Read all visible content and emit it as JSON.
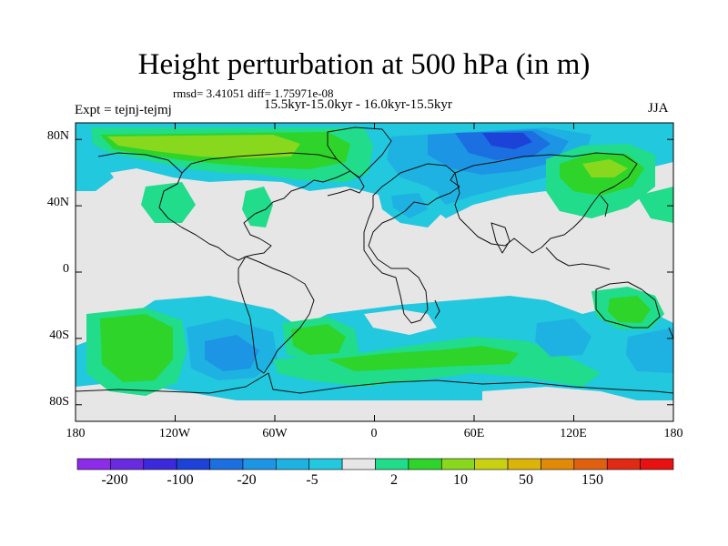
{
  "title": "Height perturbation at 500 hPa (in m)",
  "stats": "rmsd= 3.41051 diff= 1.75971e-08",
  "experiment": "Expt = tejnj-tejmj",
  "period": "15.5kyr-15.0kyr - 16.0kyr-15.5kyr",
  "season": "JJA",
  "map": {
    "lat_labels": [
      "80N",
      "40N",
      "0",
      "40S",
      "80S"
    ],
    "lat_values": [
      80,
      40,
      0,
      -40,
      -80
    ],
    "lon_labels": [
      "180",
      "120W",
      "60W",
      "0",
      "60E",
      "120E",
      "180"
    ],
    "lon_values": [
      -180,
      -120,
      -60,
      0,
      60,
      120,
      180
    ],
    "lat_range": [
      -90,
      90
    ],
    "lon_range": [
      -180,
      180
    ]
  },
  "colorbar": {
    "labels": [
      "-200",
      "-100",
      "-20",
      "-5",
      "2",
      "10",
      "50",
      "150"
    ],
    "colors": [
      "#8c2ce8",
      "#6a2ae0",
      "#3a2adc",
      "#1c42d8",
      "#1b6fe0",
      "#1c95e4",
      "#1eb2e2",
      "#22c8de",
      "#e6e6e6",
      "#21dc8a",
      "#2ed42a",
      "#88d81e",
      "#c8d010",
      "#dcb408",
      "#e08a08",
      "#e06010",
      "#e02a14",
      "#e81010"
    ]
  },
  "colors": {
    "neutral": "#e6e6e6",
    "coast": "#111111"
  }
}
